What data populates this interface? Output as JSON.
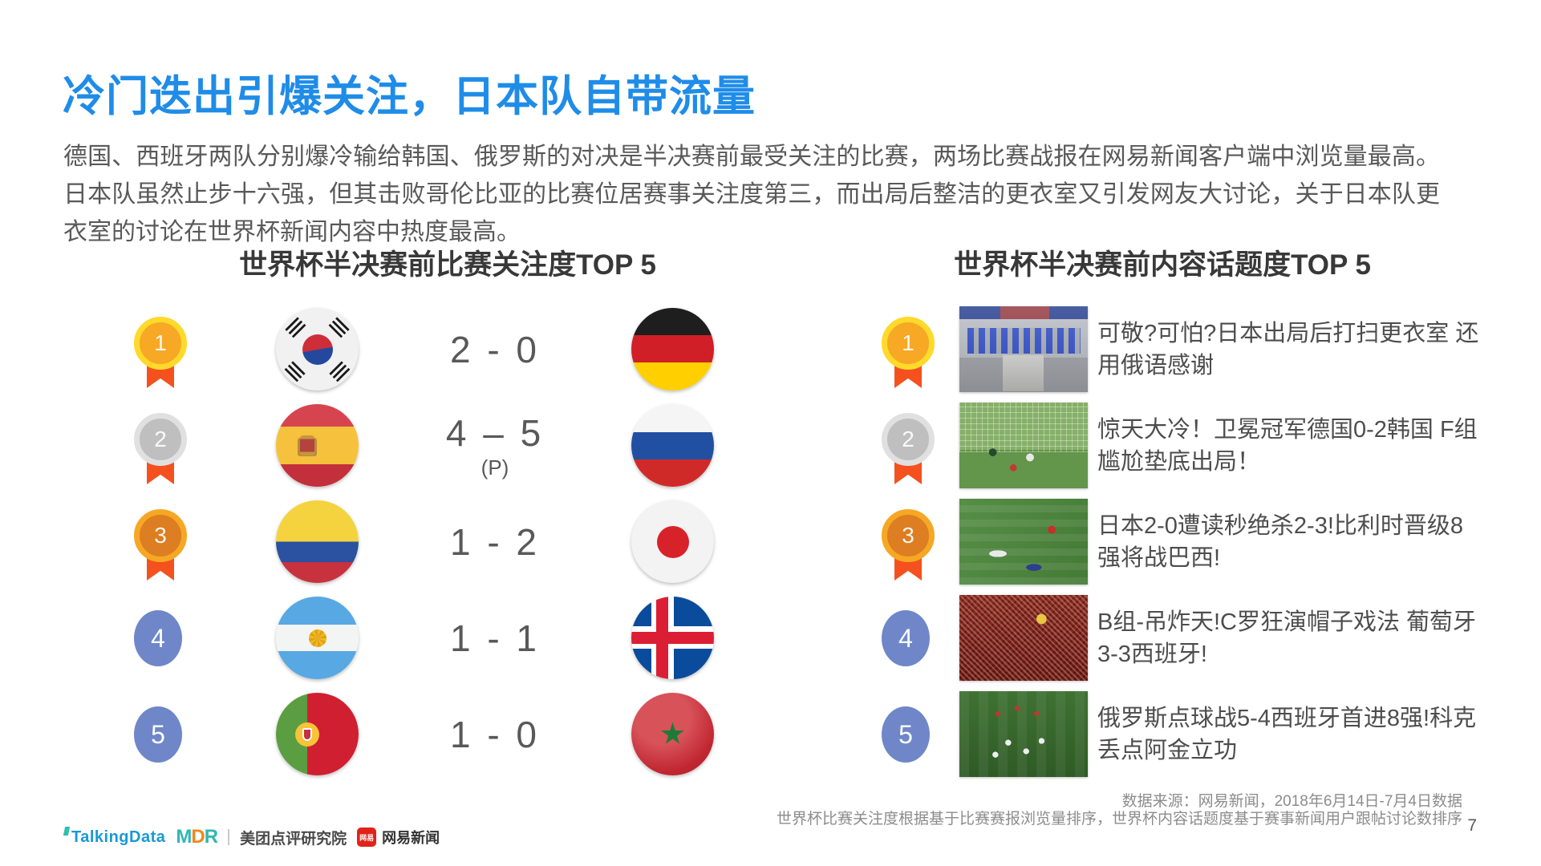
{
  "slide": {
    "title": "冷门迭出引爆关注，日本队自带流量",
    "intro": "德国、西班牙两队分别爆冷输给韩国、俄罗斯的对决是半决赛前最受关注的比赛，两场比赛战报在网易新闻客户端中浏览量最高。日本队虽然止步十六强，但其击败哥伦比亚的比赛位居赛事关注度第三，而出局后整洁的更衣室又引发网友大讨论，关于日本队更衣室的讨论在世界杯新闻内容中热度最高。",
    "page_number": "7"
  },
  "left_panel": {
    "title": "世界杯半决赛前比赛关注度TOP 5",
    "rows": [
      {
        "rank": "1",
        "home_flag": "flag-south-korea",
        "score": "2 - 0",
        "score_note": "",
        "away_flag": "flag-germany"
      },
      {
        "rank": "2",
        "home_flag": "flag-spain",
        "score": "4 – 5",
        "score_note": "(P)",
        "away_flag": "flag-russia"
      },
      {
        "rank": "3",
        "home_flag": "flag-colombia",
        "score": "1 - 2",
        "score_note": "",
        "away_flag": "flag-japan"
      },
      {
        "rank": "4",
        "home_flag": "flag-argentina",
        "score": "1 - 1",
        "score_note": "",
        "away_flag": "flag-iceland"
      },
      {
        "rank": "5",
        "home_flag": "flag-portugal",
        "score": "1 - 0",
        "score_note": "",
        "away_flag": "flag-morocco"
      }
    ]
  },
  "right_panel": {
    "title": "世界杯半决赛前内容话题度TOP 5",
    "rows": [
      {
        "rank": "1",
        "image": "japan-locker-room-photo",
        "headline": "可敬?可怕?日本出局后打扫更衣室 还用俄语感谢"
      },
      {
        "rank": "2",
        "image": "germany-korea-goal-photo",
        "headline": "惊天大冷！卫冕冠军德国0-2韩国 F组尴尬垫底出局！"
      },
      {
        "rank": "3",
        "image": "japan-belgium-match-photo",
        "headline": "日本2-0遭读秒绝杀2-3!比利时晋级8强将战巴西!"
      },
      {
        "rank": "4",
        "image": "portugal-spain-fans-photo",
        "headline": "B组-吊炸天!C罗狂演帽子戏法 葡萄牙3-3西班牙!"
      },
      {
        "rank": "5",
        "image": "russia-celebration-photo",
        "headline": "俄罗斯点球战5-4西班牙首进8强!科克丢点阿金立功"
      }
    ]
  },
  "footer": {
    "source_line1": "数据来源：网易新闻，2018年6月14日-7月4日数据",
    "source_line2": "世界杯比赛关注度根据基于比赛赛报浏览量排序，世界杯内容话题度基于赛事新闻用户跟帖讨论数排序",
    "logos": {
      "talkingdata": "TalkingData",
      "mdr_letters": [
        "M",
        "D",
        "R"
      ],
      "meituan": "美团点评研究院",
      "netease_badge": "网易",
      "netease": "网易新闻"
    }
  },
  "colors": {
    "title_blue": "#1F8CE8",
    "rank_badge_blue": "#6F87C8",
    "medal_gold": "#F7A824",
    "medal_silver": "#BFBFBF",
    "medal_bronze": "#DC7E21",
    "ribbon_orange": "#F4511E"
  }
}
